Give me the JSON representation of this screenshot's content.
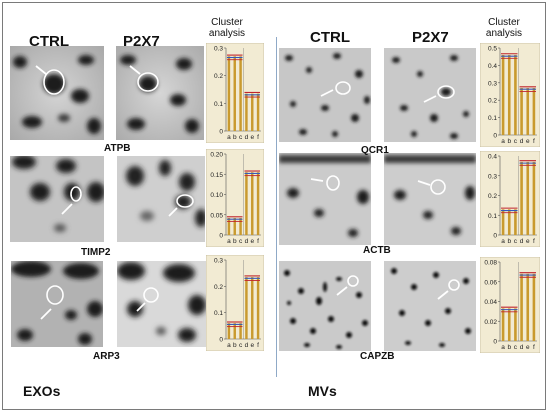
{
  "panels": {
    "exos": {
      "group_label": "EXOs",
      "ctrl_label": "CTRL",
      "p2x7_label": "P2X7",
      "cluster_label_line1": "Cluster",
      "cluster_label_line2": "analysis",
      "proteins": [
        "ATPB",
        "TIMP2",
        "ARP3"
      ]
    },
    "mvs": {
      "group_label": "MVs",
      "ctrl_label": "CTRL",
      "p2x7_label": "P2X7",
      "cluster_label_line1": "Cluster",
      "cluster_label_line2": "analysis",
      "proteins": [
        "QCR1",
        "ACTB",
        "CAPZB"
      ]
    }
  },
  "chart_data": [
    {
      "type": "bar",
      "protein": "ATPB",
      "categories": [
        "a",
        "b",
        "c",
        "d",
        "e",
        "f"
      ],
      "ticks": [
        "0",
        "0.1",
        "0.2",
        "0.3"
      ],
      "ylim": [
        0,
        0.3
      ],
      "values": [
        0.27,
        0.27,
        0.27,
        0.135,
        0.135,
        0.135
      ],
      "colors": {
        "bar": "#c99a2e",
        "background": "#f2ebd3"
      }
    },
    {
      "type": "bar",
      "protein": "TIMP2",
      "categories": [
        "a",
        "b",
        "c",
        "d",
        "e",
        "f"
      ],
      "ticks": [
        "0",
        "0.05",
        "0.10",
        "0.15",
        "0.20"
      ],
      "ylim": [
        0,
        0.2
      ],
      "values": [
        0.042,
        0.042,
        0.042,
        0.155,
        0.155,
        0.155
      ],
      "colors": {
        "bar": "#c99a2e",
        "background": "#f2ebd3"
      }
    },
    {
      "type": "bar",
      "protein": "ARP3",
      "categories": [
        "a",
        "b",
        "c",
        "d",
        "e",
        "f"
      ],
      "ticks": [
        "0",
        "0.1",
        "0.2",
        "0.3"
      ],
      "ylim": [
        0,
        0.3
      ],
      "values": [
        0.06,
        0.06,
        0.06,
        0.235,
        0.235,
        0.235
      ],
      "colors": {
        "bar": "#c99a2e",
        "background": "#f2ebd3"
      }
    },
    {
      "type": "bar",
      "protein": "QCR1",
      "categories": [
        "a",
        "b",
        "c",
        "d",
        "e",
        "f"
      ],
      "ticks": [
        "0",
        "0.1",
        "0.2",
        "0.3",
        "0.4",
        "0.5"
      ],
      "ylim": [
        0,
        0.5
      ],
      "values": [
        0.46,
        0.46,
        0.46,
        0.27,
        0.27,
        0.27
      ],
      "colors": {
        "bar": "#c99a2e",
        "background": "#f2ebd3"
      }
    },
    {
      "type": "bar",
      "protein": "ACTB",
      "categories": [
        "a",
        "b",
        "c",
        "d",
        "e",
        "f"
      ],
      "ticks": [
        "0",
        "0.1",
        "0.2",
        "0.3",
        "0.4"
      ],
      "ylim": [
        0,
        0.4
      ],
      "values": [
        0.13,
        0.13,
        0.13,
        0.37,
        0.37,
        0.37
      ],
      "colors": {
        "bar": "#c99a2e",
        "background": "#f2ebd3"
      }
    },
    {
      "type": "bar",
      "protein": "CAPZB",
      "categories": [
        "a",
        "b",
        "c",
        "d",
        "e",
        "f"
      ],
      "ticks": [
        "0",
        "0.02",
        "0.04",
        "0.06",
        "0.08"
      ],
      "ylim": [
        0,
        0.08
      ],
      "values": [
        0.033,
        0.033,
        0.033,
        0.068,
        0.068,
        0.068
      ],
      "colors": {
        "bar": "#c99a2e",
        "background": "#f2ebd3"
      }
    }
  ]
}
